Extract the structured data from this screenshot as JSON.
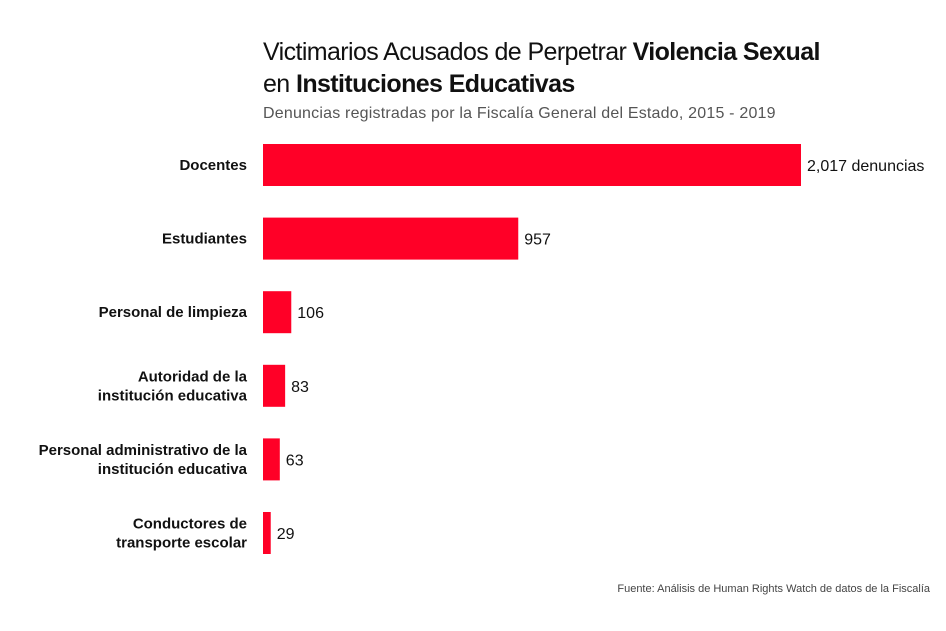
{
  "title": {
    "part1": "Victimarios Acusados de Perpetrar ",
    "part2_bold": "Violencia Sexual",
    "part3": "en ",
    "part4_bold": "Instituciones Educativas"
  },
  "subtitle": "Denuncias registradas por la Fiscalía General del Estado, 2015 - 2019",
  "source": "Fuente: Análisis de Human Rights Watch de datos de la Fiscalía",
  "colors": {
    "bar": "#ff0027"
  },
  "chart_data": {
    "type": "bar",
    "orientation": "horizontal",
    "title": "Victimarios Acusados de Perpetrar Violencia Sexual en Instituciones Educativas",
    "subtitle": "Denuncias registradas por la Fiscalía General del Estado, 2015 - 2019",
    "categories": [
      [
        "Docentes"
      ],
      [
        "Estudiantes"
      ],
      [
        "Personal de limpieza"
      ],
      [
        "Autoridad de la",
        "institución educativa"
      ],
      [
        "Personal administrativo de la",
        "institución educativa"
      ],
      [
        "Conductores de",
        "transporte escolar"
      ]
    ],
    "values": [
      2017,
      957,
      106,
      83,
      63,
      29
    ],
    "data_labels": [
      "2,017 denuncias",
      "957",
      "106",
      "83",
      "63",
      "29"
    ],
    "xlim": [
      0,
      2017
    ],
    "grid": false,
    "axes_visible": false
  }
}
